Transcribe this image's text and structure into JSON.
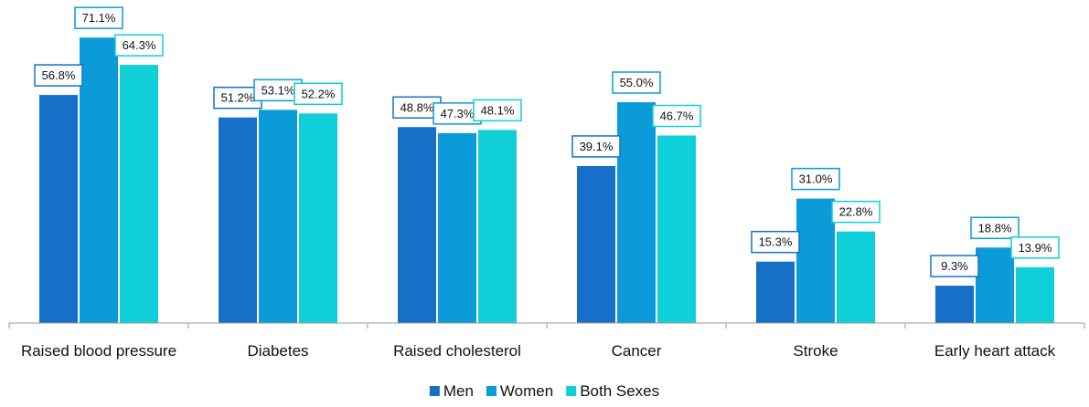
{
  "chart_data": {
    "type": "bar",
    "categories": [
      "Raised blood pressure",
      "Diabetes",
      "Raised cholesterol",
      "Cancer",
      "Stroke",
      "Early heart attack"
    ],
    "series": [
      {
        "name": "Men",
        "values": [
          56.8,
          51.2,
          48.8,
          39.1,
          15.3,
          9.3
        ],
        "labels": [
          "56.8%",
          "51.2%",
          "48.8%",
          "39.1%",
          "15.3%",
          "9.3%"
        ],
        "color": "#1670C8"
      },
      {
        "name": "Women",
        "values": [
          71.1,
          53.1,
          47.3,
          55.0,
          31.0,
          18.8
        ],
        "labels": [
          "71.1%",
          "53.1%",
          "47.3%",
          "55.0%",
          "31.0%",
          "18.8%"
        ],
        "color": "#0A9BD8"
      },
      {
        "name": "Both Sexes",
        "values": [
          64.3,
          52.2,
          48.1,
          46.7,
          22.8,
          13.9
        ],
        "labels": [
          "64.3%",
          "52.2%",
          "48.1%",
          "46.7%",
          "22.8%",
          "13.9%"
        ],
        "color": "#0FCFD8"
      }
    ],
    "ylim": [
      0,
      80
    ],
    "grid": false,
    "legend_position": "bottom"
  }
}
